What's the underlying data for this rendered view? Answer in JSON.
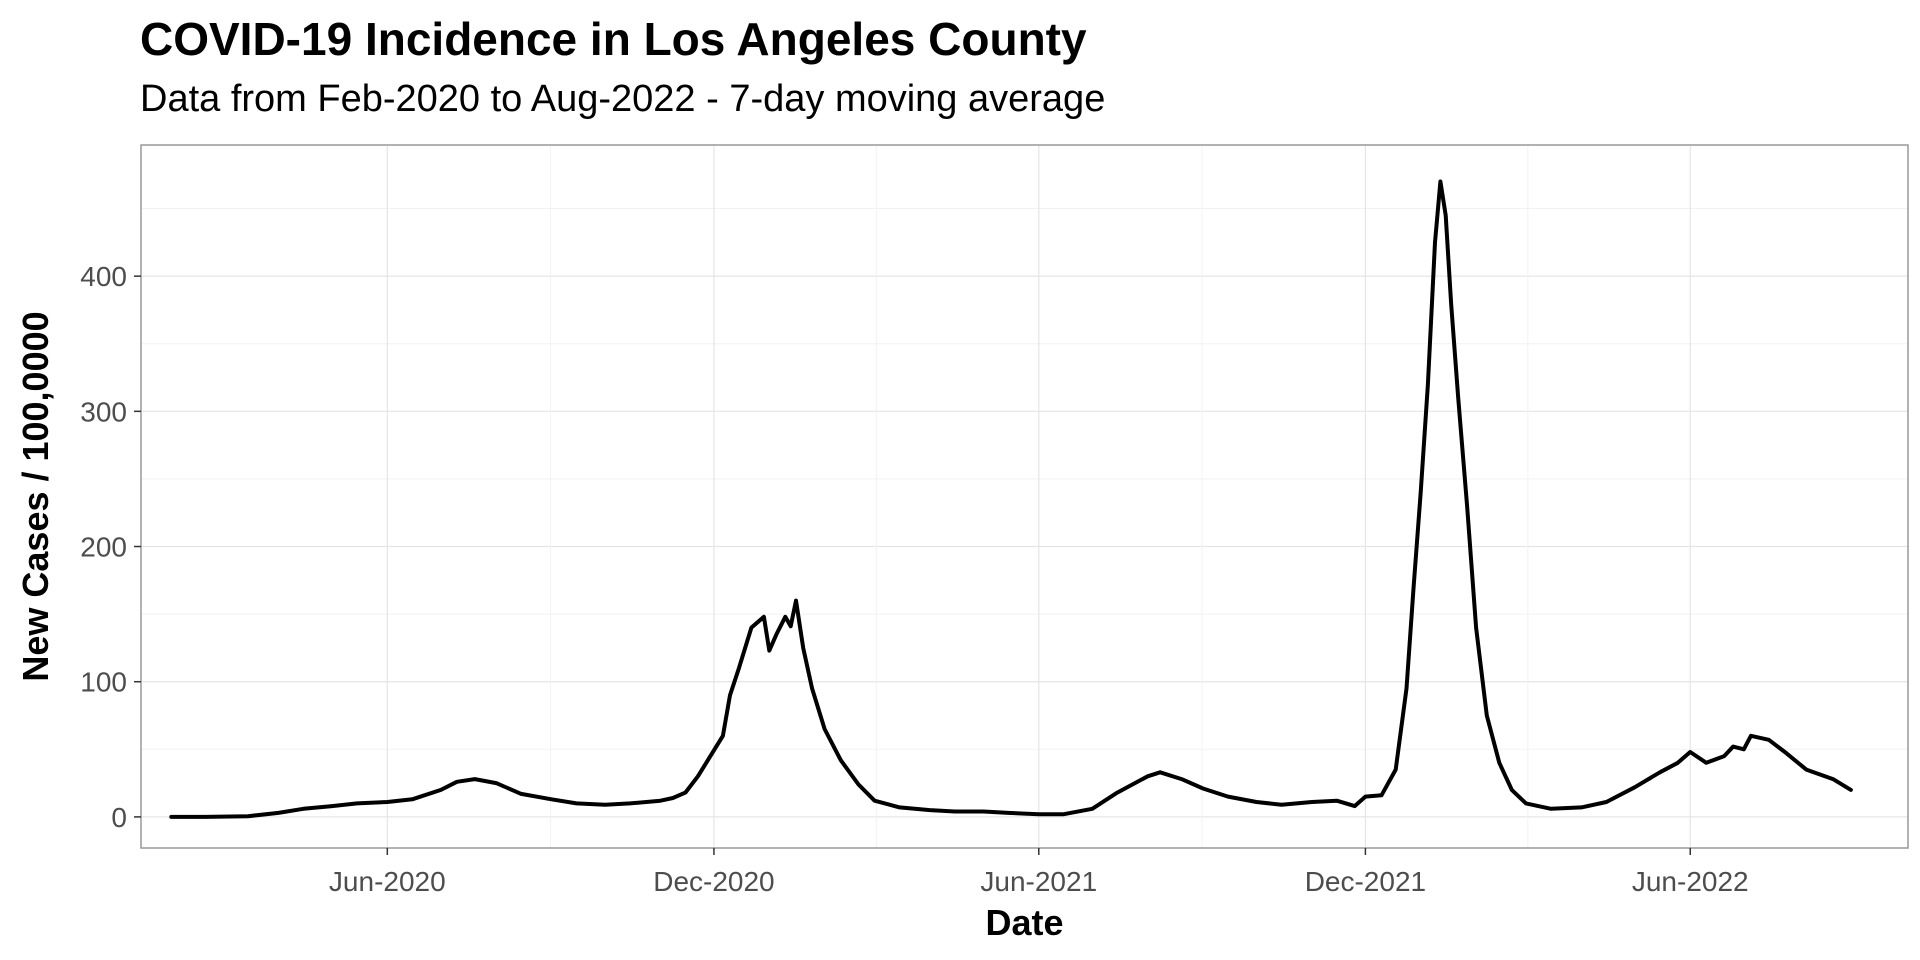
{
  "chart_data": {
    "type": "line",
    "title": "COVID-19 Incidence in Los Angeles County",
    "subtitle": "Data from Feb-2020 to Aug-2022 - 7-day moving average",
    "xlabel": "Date",
    "ylabel": "New Cases / 100,0000",
    "x_ticks": [
      {
        "date": "2020-06-01",
        "label": "Jun-2020"
      },
      {
        "date": "2020-12-01",
        "label": "Dec-2020"
      },
      {
        "date": "2021-06-01",
        "label": "Jun-2021"
      },
      {
        "date": "2021-12-01",
        "label": "Dec-2021"
      },
      {
        "date": "2022-06-01",
        "label": "Jun-2022"
      }
    ],
    "y_ticks": [
      0,
      100,
      200,
      300,
      400
    ],
    "xlim": [
      "2020-01-15",
      "2022-10-01"
    ],
    "ylim": [
      -23,
      497
    ],
    "grid": true,
    "colors": {
      "line": "#000000",
      "grid": "#e5e5e5",
      "panel_border": "#999999"
    },
    "series": [
      {
        "points": [
          [
            "2020-02-01",
            0
          ],
          [
            "2020-02-20",
            0
          ],
          [
            "2020-03-15",
            0.5
          ],
          [
            "2020-04-01",
            3
          ],
          [
            "2020-04-15",
            6
          ],
          [
            "2020-05-01",
            8
          ],
          [
            "2020-05-15",
            10
          ],
          [
            "2020-06-01",
            11
          ],
          [
            "2020-06-15",
            13
          ],
          [
            "2020-07-01",
            20
          ],
          [
            "2020-07-10",
            26
          ],
          [
            "2020-07-20",
            28
          ],
          [
            "2020-08-01",
            25
          ],
          [
            "2020-08-15",
            17
          ],
          [
            "2020-09-01",
            13
          ],
          [
            "2020-09-15",
            10
          ],
          [
            "2020-10-01",
            9
          ],
          [
            "2020-10-15",
            10
          ],
          [
            "2020-11-01",
            12
          ],
          [
            "2020-11-08",
            14
          ],
          [
            "2020-11-15",
            18
          ],
          [
            "2020-11-22",
            30
          ],
          [
            "2020-11-29",
            45
          ],
          [
            "2020-12-06",
            60
          ],
          [
            "2020-12-10",
            90
          ],
          [
            "2020-12-15",
            110
          ],
          [
            "2020-12-22",
            140
          ],
          [
            "2020-12-29",
            148
          ],
          [
            "2021-01-01",
            123
          ],
          [
            "2021-01-05",
            135
          ],
          [
            "2021-01-10",
            148
          ],
          [
            "2021-01-13",
            141
          ],
          [
            "2021-01-16",
            160
          ],
          [
            "2021-01-20",
            125
          ],
          [
            "2021-01-25",
            95
          ],
          [
            "2021-02-01",
            65
          ],
          [
            "2021-02-10",
            42
          ],
          [
            "2021-02-20",
            24
          ],
          [
            "2021-03-01",
            12
          ],
          [
            "2021-03-15",
            7
          ],
          [
            "2021-04-01",
            5
          ],
          [
            "2021-04-15",
            4
          ],
          [
            "2021-05-01",
            4
          ],
          [
            "2021-05-15",
            3
          ],
          [
            "2021-06-01",
            2
          ],
          [
            "2021-06-15",
            2
          ],
          [
            "2021-07-01",
            6
          ],
          [
            "2021-07-15",
            18
          ],
          [
            "2021-08-01",
            30
          ],
          [
            "2021-08-08",
            33
          ],
          [
            "2021-08-20",
            28
          ],
          [
            "2021-09-01",
            21
          ],
          [
            "2021-09-15",
            15
          ],
          [
            "2021-10-01",
            11
          ],
          [
            "2021-10-15",
            9
          ],
          [
            "2021-11-01",
            11
          ],
          [
            "2021-11-15",
            12
          ],
          [
            "2021-11-25",
            8
          ],
          [
            "2021-12-01",
            15
          ],
          [
            "2021-12-10",
            16
          ],
          [
            "2021-12-18",
            35
          ],
          [
            "2021-12-24",
            95
          ],
          [
            "2021-12-28",
            170
          ],
          [
            "2022-01-01",
            240
          ],
          [
            "2022-01-05",
            320
          ],
          [
            "2022-01-09",
            425
          ],
          [
            "2022-01-12",
            470
          ],
          [
            "2022-01-15",
            445
          ],
          [
            "2022-01-18",
            380
          ],
          [
            "2022-01-22",
            310
          ],
          [
            "2022-01-27",
            230
          ],
          [
            "2022-02-01",
            140
          ],
          [
            "2022-02-07",
            75
          ],
          [
            "2022-02-14",
            40
          ],
          [
            "2022-02-21",
            20
          ],
          [
            "2022-03-01",
            10
          ],
          [
            "2022-03-15",
            6
          ],
          [
            "2022-04-01",
            7
          ],
          [
            "2022-04-15",
            11
          ],
          [
            "2022-05-01",
            22
          ],
          [
            "2022-05-15",
            33
          ],
          [
            "2022-05-25",
            40
          ],
          [
            "2022-06-01",
            48
          ],
          [
            "2022-06-10",
            40
          ],
          [
            "2022-06-20",
            45
          ],
          [
            "2022-06-25",
            52
          ],
          [
            "2022-07-01",
            50
          ],
          [
            "2022-07-05",
            60
          ],
          [
            "2022-07-15",
            57
          ],
          [
            "2022-07-25",
            47
          ],
          [
            "2022-08-05",
            35
          ],
          [
            "2022-08-20",
            28
          ],
          [
            "2022-08-30",
            20
          ]
        ]
      }
    ]
  }
}
